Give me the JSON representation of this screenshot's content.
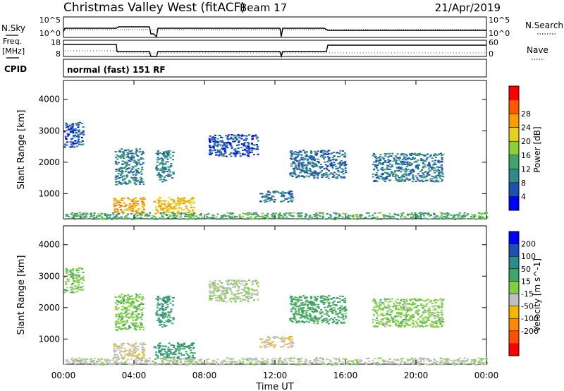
{
  "header": {
    "title": "Christmas Valley West (fitACF)",
    "beam": "Beam 17",
    "date": "21/Apr/2019"
  },
  "side_labels": {
    "nsky": "N.Sky",
    "nsearch": "N.Search",
    "freq_line1": "Freq.",
    "freq_line2": "[MHz]",
    "nave": "Nave",
    "cpid": "CPID",
    "cpid_value": "normal (fast) 151 RF"
  },
  "noise_panel": {
    "left_ticks": [
      "10^5",
      "10^0"
    ],
    "right_ticks": [
      "10^5",
      "10^0"
    ]
  },
  "freq_panel": {
    "left_ticks": [
      "18",
      "8"
    ],
    "right_ticks": [
      "60",
      "0"
    ]
  },
  "chart_data": [
    {
      "type": "heatmap",
      "ylabel": "Slant Range [km]",
      "yticks": [
        "1000",
        "2000",
        "3000",
        "4000"
      ],
      "ylim": [
        200,
        4600
      ],
      "colorbar": {
        "label": "Power [dB]",
        "ticks": [
          "4",
          "8",
          "12",
          "16",
          "20",
          "24",
          "28"
        ],
        "colors": [
          "#0000ff",
          "#1f4fb0",
          "#2f8a8a",
          "#3fa56a",
          "#8ccf3a",
          "#e8d020",
          "#f5a000",
          "#ff5a00",
          "#ff0000"
        ]
      },
      "regions": [
        {
          "t0": 0.0,
          "t1": 1.1,
          "r0": 2500,
          "r1": 3300,
          "value": 6
        },
        {
          "t0": 2.9,
          "t1": 4.5,
          "r0": 1300,
          "r1": 2450,
          "value": 10
        },
        {
          "t0": 5.2,
          "t1": 6.2,
          "r0": 1400,
          "r1": 2400,
          "value": 10
        },
        {
          "t0": 2.8,
          "t1": 4.6,
          "r0": 380,
          "r1": 900,
          "value": 26
        },
        {
          "t0": 5.1,
          "t1": 7.4,
          "r0": 380,
          "r1": 900,
          "value": 24
        },
        {
          "t0": 0.0,
          "t1": 24.0,
          "r0": 200,
          "r1": 420,
          "value": 14
        },
        {
          "t0": 11.1,
          "t1": 13.0,
          "r0": 750,
          "r1": 1100,
          "value": 8
        },
        {
          "t0": 12.8,
          "t1": 16.0,
          "r0": 1500,
          "r1": 2400,
          "value": 8
        },
        {
          "t0": 17.5,
          "t1": 21.5,
          "r0": 1400,
          "r1": 2300,
          "value": 9
        },
        {
          "t0": 8.2,
          "t1": 11.0,
          "r0": 2200,
          "r1": 2900,
          "value": 6
        }
      ]
    },
    {
      "type": "heatmap",
      "xlabel": "Time UT",
      "xticks": [
        "00:00",
        "04:00",
        "08:00",
        "12:00",
        "16:00",
        "20:00",
        "00:00"
      ],
      "xlim": [
        0,
        24
      ],
      "ylabel": "Slant Range [km]",
      "yticks": [
        "1000",
        "2000",
        "3000",
        "4000"
      ],
      "ylim": [
        200,
        4600
      ],
      "colorbar": {
        "label": "Velocity [m s^-1]",
        "ticks": [
          "200",
          "100",
          "50",
          "15",
          "-15",
          "-50",
          "-100",
          "-200"
        ],
        "colors": [
          "#0000ff",
          "#1f4fb0",
          "#2f8a8a",
          "#3fa56a",
          "#7fd040",
          "#c0c0c0",
          "#f5b800",
          "#ff8a00",
          "#ff5000",
          "#ff0000"
        ]
      },
      "regions": [
        {
          "t0": 0.0,
          "t1": 1.1,
          "r0": 2500,
          "r1": 3300,
          "value": 0
        },
        {
          "t0": 2.9,
          "t1": 4.5,
          "r0": 1300,
          "r1": 2450,
          "value": 5
        },
        {
          "t0": 5.2,
          "t1": 6.2,
          "r0": 1400,
          "r1": 2400,
          "value": 40
        },
        {
          "t0": 2.8,
          "t1": 4.6,
          "r0": 380,
          "r1": 900,
          "value": -40
        },
        {
          "t0": 5.1,
          "t1": 7.4,
          "r0": 380,
          "r1": 900,
          "value": 40
        },
        {
          "t0": 0.0,
          "t1": 24.0,
          "r0": 200,
          "r1": 420,
          "value": -25
        },
        {
          "t0": 11.1,
          "t1": 13.0,
          "r0": 750,
          "r1": 1100,
          "value": -40
        },
        {
          "t0": 12.8,
          "t1": 16.0,
          "r0": 1500,
          "r1": 2400,
          "value": 30
        },
        {
          "t0": 17.5,
          "t1": 21.5,
          "r0": 1400,
          "r1": 2300,
          "value": 0
        },
        {
          "t0": 8.2,
          "t1": 11.0,
          "r0": 2200,
          "r1": 2900,
          "value": -20
        }
      ]
    }
  ]
}
